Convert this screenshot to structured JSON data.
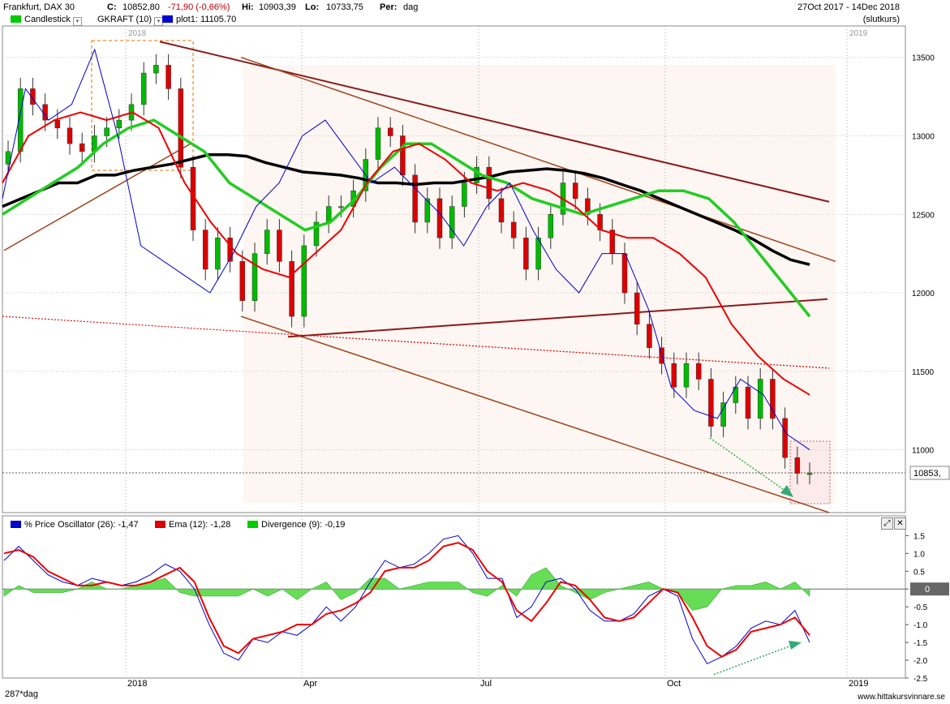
{
  "header": {
    "instrument": "Frankfurt, DAX 30",
    "close_label": "C:",
    "close_value": "10852,80",
    "change": "-71,90 (-0,66%)",
    "high_label": "Hi:",
    "high_value": "10903,39",
    "low_label": "Lo:",
    "low_value": "10733,75",
    "period_label": "Per:",
    "period_value": "dag",
    "date_range": "27Oct 2017 - 14Dec 2018",
    "close_type": "(slutkurs)",
    "legend": [
      {
        "label": "Candlestick",
        "color": "#00cc00"
      },
      {
        "label": "GKRAFT (10)",
        "color": ""
      },
      {
        "label": "plot1: 11105.70",
        "color": "#0000cc"
      }
    ]
  },
  "lower_legend": [
    {
      "label": "% Price Oscillator (26): -1,47",
      "color": "#0000cc"
    },
    {
      "label": "Ema (12): -1,28",
      "color": "#dd0000"
    },
    {
      "label": "Divergence (9): -0,19",
      "color": "#00cc00"
    }
  ],
  "footer": {
    "bars": "287*dag",
    "site": "www.hittakursvinnare.se"
  },
  "chart_data": [
    {
      "type": "line",
      "panel": "price",
      "x_labels": [
        "2018",
        "Apr",
        "Jul",
        "Oct",
        "2019"
      ],
      "year_markers": [
        "2018",
        "2019"
      ],
      "y_ticks": [
        11000,
        11500,
        12000,
        12500,
        13000,
        13500
      ],
      "ylim": [
        10600,
        13700
      ],
      "last_value_label": "10853,",
      "colors": {
        "up": "#00bb00",
        "down": "#dd0000",
        "sma200": "#000000",
        "ma_green": "#22cc22",
        "ma_red": "#ee0000",
        "plot1": "#0000cc",
        "trend": "#8b1a1a",
        "channel": "#a0421a"
      },
      "series": [
        {
          "values": [
            12900,
            13300,
            13200,
            13100,
            13050,
            12950,
            12900,
            13000,
            13050,
            13100,
            13200,
            13400,
            13450,
            13300,
            12800,
            12400,
            12150,
            12350,
            12200,
            11950,
            12250,
            12400,
            12200,
            11850,
            12300,
            12450,
            12550,
            12550,
            12650,
            12850,
            13050,
            13000,
            12750,
            12450,
            12600,
            12350,
            12550,
            12700,
            12800,
            12600,
            12450,
            12350,
            12150,
            12350,
            12500,
            12700,
            12600,
            12500,
            12400,
            12250,
            12000,
            11800,
            11650,
            11550,
            11400,
            11550,
            11450,
            11150,
            11300,
            11400,
            11200,
            11450,
            11200,
            10950,
            10850,
            10850
          ]
        },
        {
          "values": [
            12550,
            12600,
            12650,
            12700,
            12700,
            12750,
            12750,
            12780,
            12800,
            12820,
            12850,
            12880,
            12880,
            12870,
            12830,
            12800,
            12770,
            12760,
            12750,
            12730,
            12700,
            12700,
            12690,
            12700,
            12700,
            12720,
            12740,
            12770,
            12780,
            12790,
            12780,
            12760,
            12730,
            12690,
            12650,
            12600,
            12550,
            12500,
            12450,
            12400,
            12340,
            12270,
            12210,
            12180
          ]
        },
        {
          "values": [
            12500,
            12600,
            12700,
            12800,
            12950,
            13050,
            13100,
            13000,
            12900,
            12700,
            12600,
            12500,
            12400,
            12450,
            12600,
            12800,
            12950,
            12950,
            12850,
            12750,
            12700,
            12600,
            12550,
            12500,
            12550,
            12600,
            12650,
            12650,
            12600,
            12450,
            12250,
            12050,
            11850
          ]
        },
        {
          "values": [
            12700,
            13000,
            13100,
            13150,
            13100,
            13150,
            13050,
            12700,
            12450,
            12250,
            12150,
            12100,
            12250,
            12400,
            12700,
            12900,
            12950,
            12850,
            12700,
            12650,
            12700,
            12650,
            12550,
            12400,
            12350,
            12350,
            12250,
            12100,
            11800,
            11600,
            11450,
            11350
          ]
        },
        {
          "values": [
            12600,
            13300,
            13100,
            13200,
            13550,
            13000,
            12300,
            12200,
            12100,
            12000,
            12250,
            12550,
            12700,
            13000,
            13100,
            12900,
            12700,
            12800,
            12650,
            12500,
            12300,
            12550,
            12700,
            12400,
            12150,
            12000,
            12250,
            12250,
            11900,
            11400,
            11250,
            11200,
            11450,
            11350,
            11100,
            11000
          ]
        }
      ]
    },
    {
      "type": "area",
      "panel": "oscillator",
      "y_ticks": [
        -2.5,
        -2.0,
        -1.5,
        -1.0,
        -0.5,
        0,
        0.5,
        1.0,
        1.5
      ],
      "zero_label": "0",
      "ylim": [
        -2.5,
        1.6
      ],
      "series": [
        {
          "values": [
            0.8,
            1.2,
            0.8,
            0.4,
            0.2,
            0.1,
            0.3,
            0.2,
            0.1,
            0.2,
            0.4,
            0.7,
            0.5,
            0.0,
            -1.0,
            -1.8,
            -2.0,
            -1.4,
            -1.5,
            -1.2,
            -1.3,
            -1.0,
            -0.5,
            -0.9,
            -0.5,
            0.2,
            0.8,
            0.6,
            0.7,
            1.0,
            1.4,
            1.5,
            1.0,
            0.3,
            0.3,
            -0.8,
            -0.5,
            0.2,
            0.3,
            0.0,
            -0.6,
            -0.9,
            -0.9,
            -0.7,
            -0.2,
            0.0,
            -0.2,
            -1.4,
            -2.1,
            -1.9,
            -1.6,
            -1.1,
            -0.9,
            -1.0,
            -0.6,
            -1.5
          ]
        },
        {
          "values": [
            1.0,
            1.1,
            0.9,
            0.5,
            0.3,
            0.1,
            0.1,
            0.2,
            0.1,
            0.1,
            0.2,
            0.4,
            0.6,
            0.2,
            -0.8,
            -1.6,
            -1.8,
            -1.4,
            -1.3,
            -1.2,
            -1.0,
            -1.0,
            -0.7,
            -0.6,
            -0.4,
            -0.1,
            0.5,
            0.6,
            0.6,
            0.8,
            1.2,
            1.3,
            1.1,
            0.5,
            0.2,
            -0.6,
            -0.9,
            -0.4,
            0.2,
            0.1,
            -0.3,
            -0.8,
            -0.9,
            -0.8,
            -0.4,
            0.0,
            -0.1,
            -0.8,
            -1.6,
            -1.9,
            -1.7,
            -1.2,
            -1.1,
            -1.0,
            -0.8,
            -1.3
          ]
        },
        {
          "values": [
            -0.2,
            0.1,
            -0.1,
            -0.1,
            -0.1,
            0.0,
            0.2,
            0.0,
            0.0,
            0.1,
            0.2,
            0.3,
            -0.1,
            -0.2,
            -0.2,
            -0.2,
            -0.2,
            0.0,
            -0.2,
            0.0,
            -0.3,
            0.0,
            0.2,
            -0.3,
            -0.1,
            0.3,
            0.3,
            0.0,
            0.1,
            0.2,
            0.2,
            0.2,
            -0.1,
            -0.2,
            0.1,
            -0.2,
            0.4,
            0.6,
            0.1,
            -0.1,
            -0.3,
            -0.1,
            0.0,
            0.1,
            0.2,
            0.0,
            -0.1,
            -0.6,
            -0.5,
            0.0,
            0.1,
            0.1,
            0.2,
            0.0,
            0.2,
            -0.2
          ]
        }
      ]
    }
  ]
}
